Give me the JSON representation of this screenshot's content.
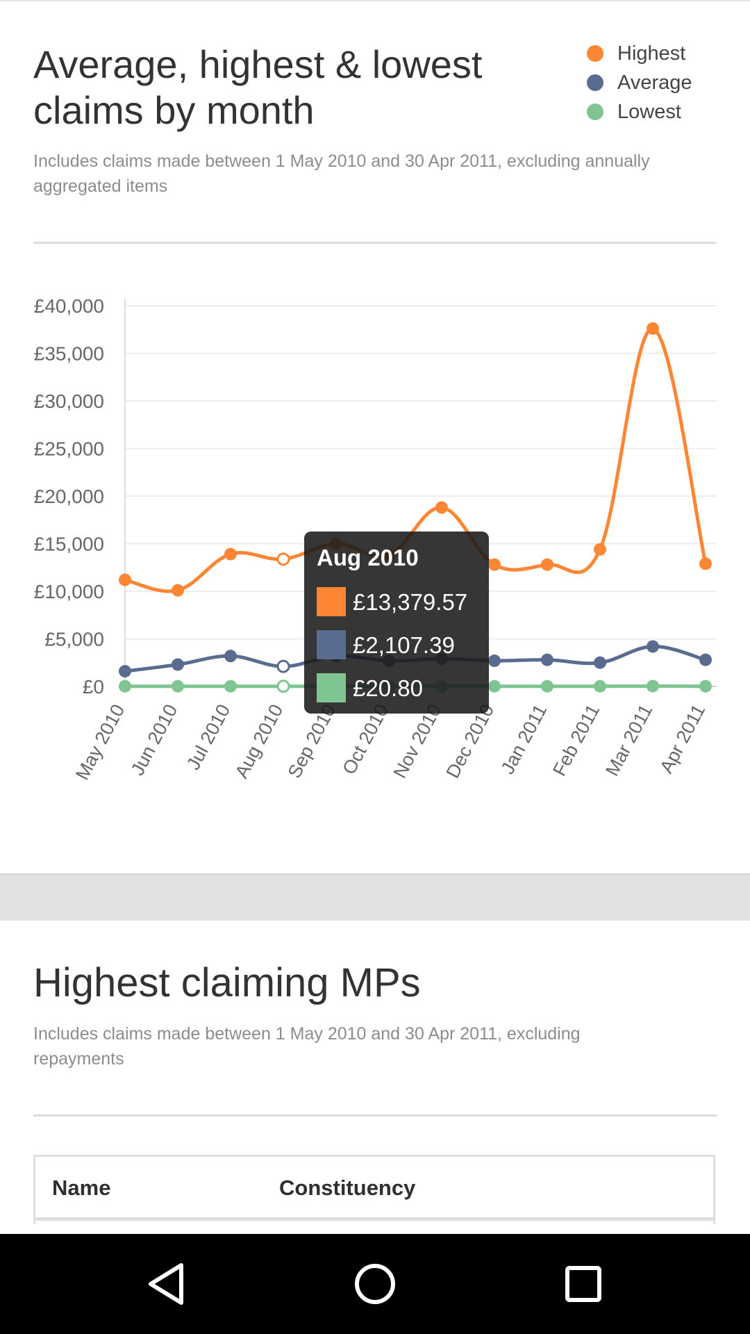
{
  "header": {
    "title": "Average, highest & lowest claims by month",
    "subtitle": "Includes claims made between 1 May 2010 and 30 Apr 2011, excluding annually aggregated items"
  },
  "legend": [
    {
      "label": "Highest",
      "color": "#fd8635"
    },
    {
      "label": "Average",
      "color": "#5a6b90"
    },
    {
      "label": "Lowest",
      "color": "#7ec592"
    }
  ],
  "chart_data": {
    "type": "line",
    "categories": [
      "May 2010",
      "Jun 2010",
      "Jul 2010",
      "Aug 2010",
      "Sep 2010",
      "Oct 2010",
      "Nov 2010",
      "Dec 2010",
      "Jan 2011",
      "Feb 2011",
      "Mar 2011",
      "Apr 2011"
    ],
    "series": [
      {
        "name": "Highest",
        "color": "#fd8635",
        "values": [
          11200,
          10100,
          13900,
          13379.57,
          15000,
          13800,
          18800,
          12800,
          12800,
          14400,
          37600,
          12900
        ]
      },
      {
        "name": "Average",
        "color": "#5a6b90",
        "values": [
          1600,
          2300,
          3200,
          2107.39,
          3200,
          2700,
          2900,
          2700,
          2800,
          2500,
          4200,
          2800
        ]
      },
      {
        "name": "Lowest",
        "color": "#7ec592",
        "values": [
          20,
          20,
          20,
          20.8,
          20,
          20,
          20,
          20,
          20,
          20,
          40,
          20
        ]
      }
    ],
    "ylim": [
      0,
      40000
    ],
    "yticks": [
      0,
      5000,
      10000,
      15000,
      20000,
      25000,
      30000,
      35000,
      40000
    ],
    "ytick_labels": [
      "£0",
      "£5,000",
      "£10,000",
      "£15,000",
      "£20,000",
      "£25,000",
      "£30,000",
      "£35,000",
      "£40,000"
    ],
    "grid": true,
    "legend_position": "top-right",
    "highlighted_index": 3,
    "tooltip": {
      "title": "Aug 2010",
      "rows": [
        {
          "value": "£13,379.57",
          "color": "#fd8635"
        },
        {
          "value": "£2,107.39",
          "color": "#5a6b90"
        },
        {
          "value": "£20.80",
          "color": "#7ec592"
        }
      ]
    }
  },
  "section2": {
    "title": "Highest claiming MPs",
    "subtitle": "Includes claims made between 1 May 2010 and 30 Apr 2011, excluding repayments",
    "table": {
      "columns": [
        "Name",
        "Constituency"
      ]
    }
  },
  "navbar": {
    "icons": [
      "back-icon",
      "home-icon",
      "recents-icon"
    ]
  }
}
